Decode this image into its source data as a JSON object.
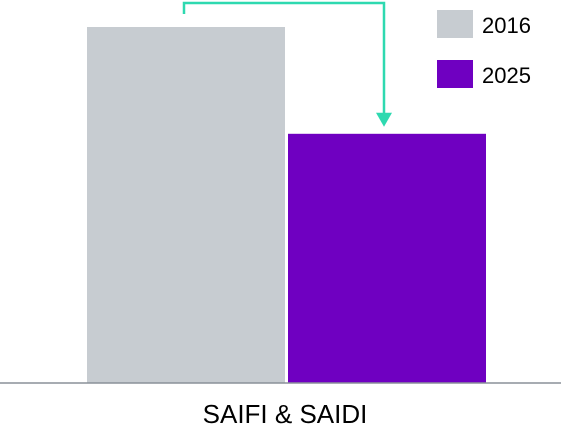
{
  "chart_data": {
    "type": "bar",
    "categories": [
      "SAIFI & SAIDI"
    ],
    "series": [
      {
        "name": "2016",
        "values": [
          100
        ]
      },
      {
        "name": "2025",
        "values": [
          70
        ]
      }
    ],
    "ylim": [
      0,
      100
    ],
    "grid": false,
    "legend": "top-right",
    "annotation": "arrow from 2016 bar to 2025 bar",
    "colors": {
      "2016": "#c7ccd1",
      "2025": "#6f00c1",
      "arrow": "#2ed9b0",
      "axis": "#8a9199"
    }
  }
}
